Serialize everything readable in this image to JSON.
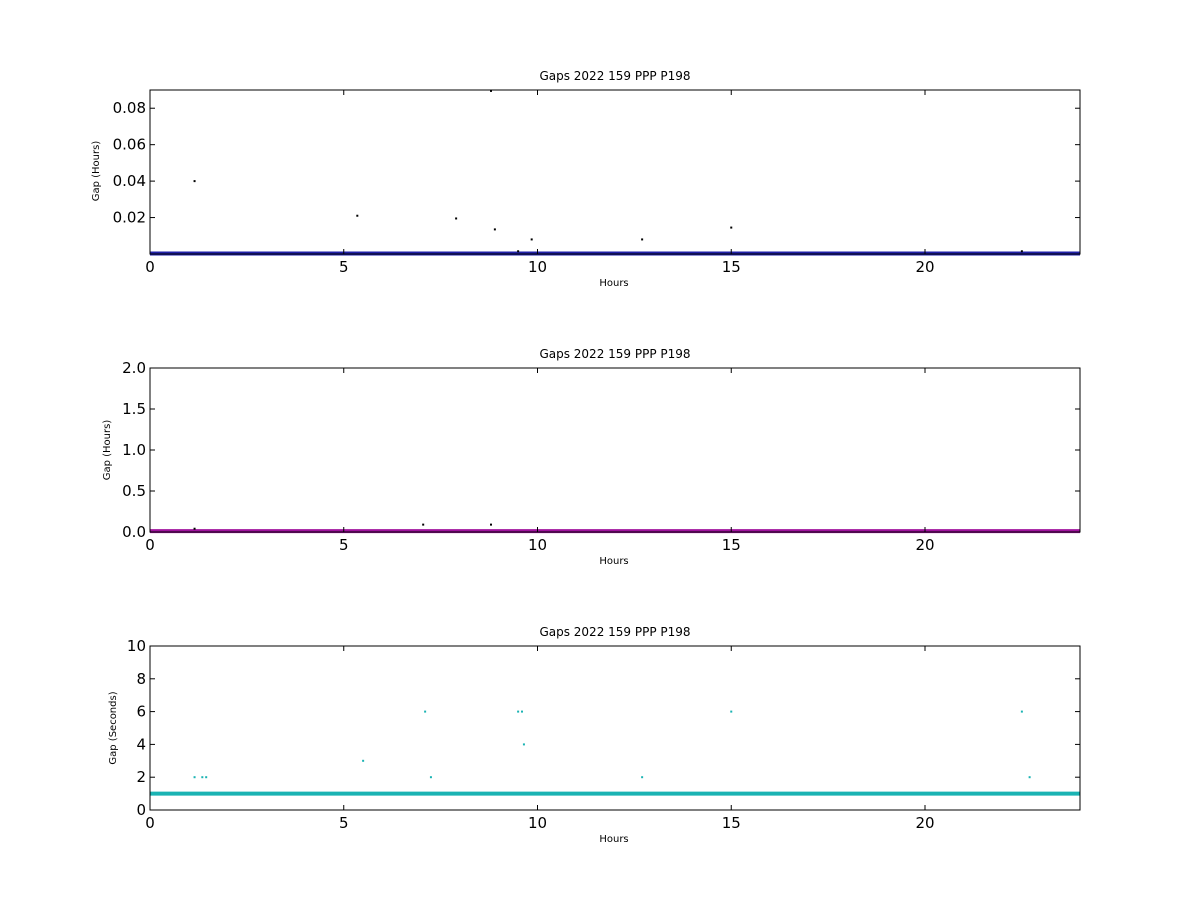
{
  "chart_data": [
    {
      "type": "scatter",
      "title": "Gaps 2022 159 PPP  P198",
      "xlabel": "Hours",
      "ylabel": "Gap (Hours)",
      "xlim": [
        0,
        24
      ],
      "ylim": [
        0,
        0.09
      ],
      "xticks": [
        "0",
        "5",
        "10",
        "15",
        "20"
      ],
      "yticks": [
        "0.02",
        "0.04",
        "0.06",
        "0.08"
      ],
      "color": "#1f1fa8",
      "outlier_color": "#000000",
      "baseline": {
        "y": 0.0003,
        "x_start": 0,
        "x_end": 24
      },
      "points": [
        {
          "x": 1.15,
          "y": 0.04
        },
        {
          "x": 5.35,
          "y": 0.021
        },
        {
          "x": 7.9,
          "y": 0.0195
        },
        {
          "x": 8.8,
          "y": 0.0895
        },
        {
          "x": 8.9,
          "y": 0.0135
        },
        {
          "x": 9.5,
          "y": 0.0015
        },
        {
          "x": 9.85,
          "y": 0.008
        },
        {
          "x": 12.7,
          "y": 0.008
        },
        {
          "x": 15.0,
          "y": 0.0145
        },
        {
          "x": 22.5,
          "y": 0.0015
        }
      ],
      "grid": false
    },
    {
      "type": "scatter",
      "title": "Gaps 2022 159 PPP  P198",
      "xlabel": "Hours",
      "ylabel": "Gap (Hours)",
      "xlim": [
        0,
        24
      ],
      "ylim": [
        0,
        2.0
      ],
      "xticks": [
        "0",
        "5",
        "10",
        "15",
        "20"
      ],
      "yticks": [
        "0.0",
        "0.5",
        "1.0",
        "1.5",
        "2.0"
      ],
      "color": "#a0129e",
      "outlier_color": "#000000",
      "baseline": {
        "y": 0.01,
        "x_start": 0,
        "x_end": 24
      },
      "points": [
        {
          "x": 1.15,
          "y": 0.04
        },
        {
          "x": 7.05,
          "y": 0.09
        },
        {
          "x": 8.8,
          "y": 0.09
        }
      ],
      "grid": false
    },
    {
      "type": "scatter",
      "title": "Gaps 2022 159 PPP  P198",
      "xlabel": "Hours",
      "ylabel": "Gap (Seconds)",
      "xlim": [
        0,
        24
      ],
      "ylim": [
        0,
        10
      ],
      "xticks": [
        "0",
        "5",
        "10",
        "15",
        "20"
      ],
      "yticks": [
        "0",
        "2",
        "4",
        "6",
        "8",
        "10"
      ],
      "color": "#1ab3b3",
      "outlier_color": "#1ab3b3",
      "baseline": {
        "y": 1,
        "x_start": 0,
        "x_end": 24
      },
      "points": [
        {
          "x": 1.15,
          "y": 2
        },
        {
          "x": 1.35,
          "y": 2
        },
        {
          "x": 1.45,
          "y": 2
        },
        {
          "x": 5.5,
          "y": 3
        },
        {
          "x": 7.1,
          "y": 6
        },
        {
          "x": 7.25,
          "y": 2
        },
        {
          "x": 9.5,
          "y": 6
        },
        {
          "x": 9.6,
          "y": 6
        },
        {
          "x": 9.65,
          "y": 4
        },
        {
          "x": 12.7,
          "y": 2
        },
        {
          "x": 15.0,
          "y": 6
        },
        {
          "x": 22.5,
          "y": 6
        },
        {
          "x": 22.7,
          "y": 2
        }
      ],
      "grid": false
    }
  ]
}
